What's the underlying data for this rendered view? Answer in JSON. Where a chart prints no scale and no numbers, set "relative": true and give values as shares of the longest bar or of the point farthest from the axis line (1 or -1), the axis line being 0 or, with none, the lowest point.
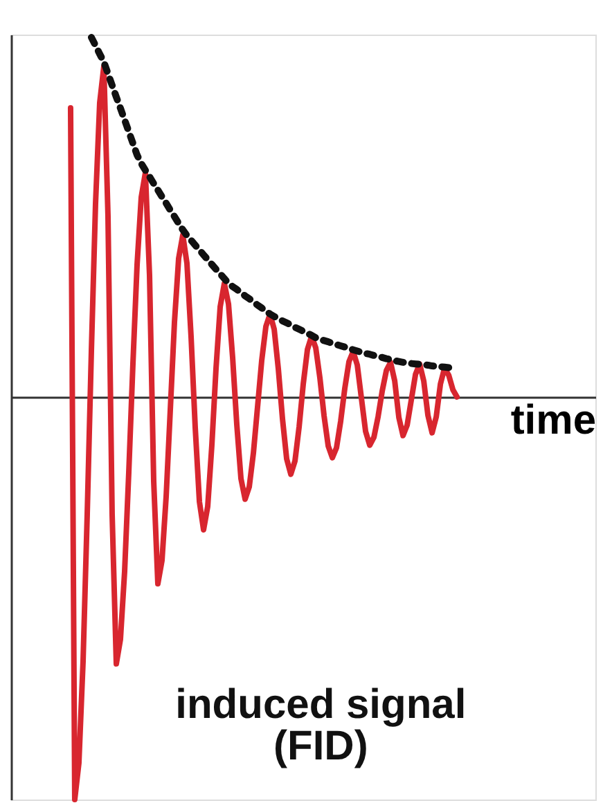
{
  "chart_data": {
    "type": "line",
    "relative": true,
    "xlabel": "time",
    "tick_labels": false,
    "grid": false,
    "ylim": [
      -1,
      0.9
    ],
    "categories": [
      null,
      null,
      null,
      null,
      null,
      null,
      null,
      null,
      null,
      null,
      null,
      null,
      null,
      null,
      null,
      null,
      null,
      null,
      null,
      null,
      null,
      null,
      null,
      null,
      null,
      null,
      null,
      null,
      null,
      null,
      null,
      null,
      null,
      null,
      null,
      null,
      null,
      null,
      null,
      null,
      null,
      null,
      null,
      null,
      null,
      null,
      null,
      null,
      null,
      null,
      null,
      null,
      null,
      null,
      null,
      null,
      null,
      null,
      null,
      null,
      null,
      null,
      null,
      null,
      null,
      null,
      null,
      null,
      null,
      null,
      null,
      null,
      null,
      null,
      null,
      null,
      null,
      null,
      null,
      null,
      null,
      null,
      null,
      null,
      null,
      null,
      null,
      null,
      null,
      null,
      null,
      null,
      null,
      null
    ],
    "series": [
      {
        "color": "#d8262f",
        "line_style": "solid",
        "values": [
          0.718,
          -1,
          -0.909,
          -0.658,
          -0.292,
          0.113,
          0.479,
          0.73,
          0.821,
          0.45,
          -0.292,
          -0.663,
          -0.602,
          -0.434,
          -0.188,
          0.082,
          0.328,
          0.496,
          0.557,
          0.302,
          -0.209,
          -0.464,
          -0.406,
          -0.247,
          -0.031,
          0.186,
          0.344,
          0.402,
          0.332,
          0.149,
          -0.077,
          -0.26,
          -0.33,
          -0.272,
          -0.119,
          0.071,
          0.224,
          0.282,
          0.231,
          0.097,
          -0.069,
          -0.203,
          -0.254,
          -0.223,
          -0.139,
          -0.024,
          0.091,
          0.175,
          0.206,
          0.168,
          0.069,
          -0.055,
          -0.154,
          -0.192,
          -0.159,
          -0.074,
          0.033,
          0.118,
          0.151,
          0.122,
          0.047,
          -0.047,
          -0.122,
          -0.151,
          -0.126,
          -0.06,
          0.022,
          0.088,
          0.113,
          0.079,
          -0.004,
          -0.086,
          -0.12,
          -0.1,
          -0.049,
          0.015,
          0.066,
          0.086,
          0.04,
          -0.051,
          -0.096,
          -0.07,
          -0.007,
          0.056,
          0.082,
          0.039,
          -0.046,
          -0.089,
          -0.049,
          0.032,
          0.072,
          0.054,
          0.018,
          0
        ]
      },
      {
        "color": "#111111",
        "line_style": "dotted",
        "values": [
          null,
          null,
          null,
          null,
          null,
          0.893,
          0.873,
          0.852,
          0.832,
          0.803,
          0.774,
          0.745,
          0.717,
          0.688,
          0.659,
          0.63,
          0.601,
          0.58,
          0.563,
          0.547,
          0.53,
          0.514,
          0.497,
          0.481,
          0.464,
          0.448,
          0.431,
          0.415,
          0.401,
          0.389,
          0.377,
          0.365,
          0.353,
          0.341,
          0.329,
          0.317,
          0.306,
          0.294,
          0.282,
          0.274,
          0.267,
          0.259,
          0.251,
          0.244,
          0.236,
          0.228,
          0.221,
          0.213,
          0.206,
          0.2,
          0.194,
          0.189,
          0.184,
          0.179,
          0.173,
          0.168,
          0.163,
          0.158,
          0.153,
          0.147,
          0.143,
          0.14,
          0.137,
          0.133,
          0.13,
          0.127,
          0.124,
          0.121,
          0.117,
          0.114,
          0.111,
          0.108,
          0.106,
          0.103,
          0.101,
          0.098,
          0.095,
          0.093,
          0.09,
          0.088,
          0.086,
          0.085,
          0.083,
          0.082,
          0.081,
          0.08,
          0.079,
          0.077,
          0.076,
          0.075,
          0.074,
          0.073,
          null,
          null
        ]
      }
    ],
    "annotations": [
      "induced signal\n(FID)"
    ]
  }
}
